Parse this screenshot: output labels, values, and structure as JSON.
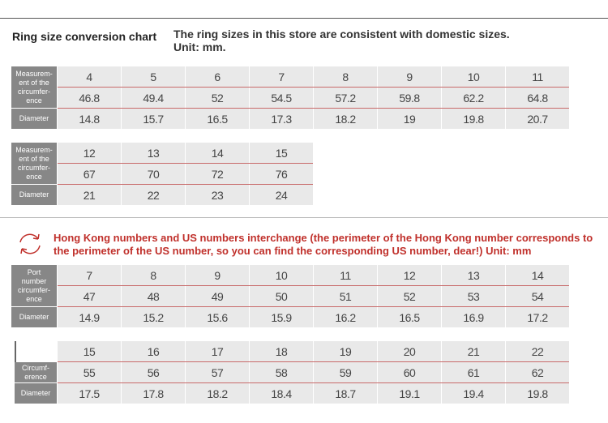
{
  "header": {
    "title": "Ring size conversion chart",
    "note": [
      "The ring sizes in this store are consistent with domestic sizes.",
      "Unit: mm."
    ]
  },
  "tables": [
    {
      "labels": [
        [
          "Measurem-",
          "ent of the",
          "circumfer-",
          "ence"
        ],
        [
          "Diameter"
        ]
      ],
      "rows": [
        [
          4,
          5,
          6,
          7,
          8,
          9,
          10,
          11
        ],
        [
          46.8,
          49.4,
          52,
          54.5,
          57.2,
          59.8,
          62.2,
          64.8
        ],
        [
          14.8,
          15.7,
          16.5,
          17.3,
          18.2,
          19,
          19.8,
          20.7
        ]
      ]
    },
    {
      "labels": [
        [
          "Measurem-",
          "ent of the",
          "circumfer-",
          "ence"
        ],
        [
          "Diameter"
        ]
      ],
      "rows": [
        [
          12,
          13,
          14,
          15
        ],
        [
          67,
          70,
          72,
          76
        ],
        [
          21,
          22,
          23,
          24
        ]
      ]
    },
    {
      "labels": [
        [
          "Port",
          "number",
          "circumfer-",
          "ence"
        ],
        [
          "Diameter"
        ]
      ],
      "rows": [
        [
          7,
          8,
          9,
          10,
          11,
          12,
          13,
          14
        ],
        [
          47,
          48,
          49,
          50,
          51,
          52,
          53,
          54
        ],
        [
          14.9,
          15.2,
          15.6,
          15.9,
          16.2,
          16.5,
          16.9,
          17.2
        ]
      ]
    },
    {
      "labels": [
        [
          "Circumf-",
          "erence"
        ],
        [
          "Diameter"
        ]
      ],
      "rows": [
        [
          15,
          16,
          17,
          18,
          19,
          20,
          21,
          22
        ],
        [
          55,
          56,
          57,
          58,
          59,
          60,
          61,
          62
        ],
        [
          17.5,
          17.8,
          18.2,
          18.4,
          18.7,
          19.1,
          19.4,
          19.8
        ]
      ]
    }
  ],
  "notice": {
    "text": [
      "Hong Kong numbers and US numbers interchange (the perimeter of the Hong Kong number corresponds to",
      "the perimeter of the US number, so you can find the corresponding US number, dear!) Unit: mm"
    ]
  }
}
